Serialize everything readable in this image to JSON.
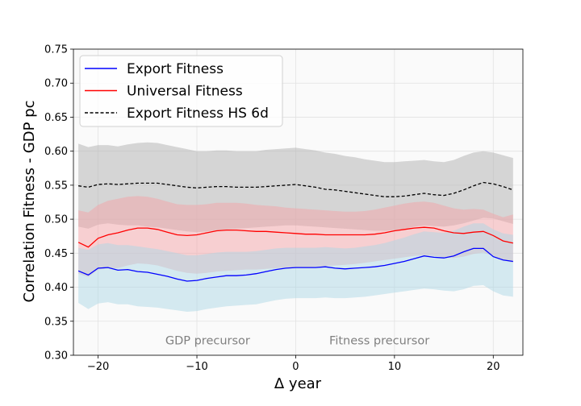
{
  "chart_data": {
    "type": "line",
    "xlabel": "Δ year",
    "ylabel": "Correlation Fitness - GDP pc",
    "xlim": [
      -22.5,
      23
    ],
    "ylim": [
      0.3,
      0.75
    ],
    "xticks": [
      -20,
      -10,
      0,
      10,
      20
    ],
    "xtick_labels": [
      "−20",
      "−10",
      "0",
      "10",
      "20"
    ],
    "yticks": [
      0.3,
      0.35,
      0.4,
      0.45,
      0.5,
      0.55,
      0.6,
      0.65,
      0.7,
      0.75
    ],
    "ytick_labels": [
      "0.30",
      "0.35",
      "0.40",
      "0.45",
      "0.50",
      "0.55",
      "0.60",
      "0.65",
      "0.70",
      "0.75"
    ],
    "grid": true,
    "legend_position": "top-left",
    "annotations": [
      {
        "text": "GDP precursor",
        "x": -13.2,
        "y": 0.316
      },
      {
        "text": "Fitness precursor",
        "x": 3.4,
        "y": 0.316
      }
    ],
    "x": [
      -22,
      -21,
      -20,
      -19,
      -18,
      -17,
      -16,
      -15,
      -14,
      -13,
      -12,
      -11,
      -10,
      -9,
      -8,
      -7,
      -6,
      -5,
      -4,
      -3,
      -2,
      -1,
      0,
      1,
      2,
      3,
      4,
      5,
      6,
      7,
      8,
      9,
      10,
      11,
      12,
      13,
      14,
      15,
      16,
      17,
      18,
      19,
      20,
      21,
      22
    ],
    "series": [
      {
        "name": "Export Fitness HS 6d",
        "color": "#000000",
        "style": "dashed",
        "band_color": "#b0b0b0",
        "values": [
          0.549,
          0.547,
          0.551,
          0.552,
          0.551,
          0.552,
          0.553,
          0.553,
          0.553,
          0.551,
          0.549,
          0.547,
          0.546,
          0.547,
          0.548,
          0.548,
          0.547,
          0.547,
          0.547,
          0.548,
          0.549,
          0.55,
          0.551,
          0.549,
          0.547,
          0.544,
          0.543,
          0.541,
          0.539,
          0.537,
          0.535,
          0.533,
          0.533,
          0.534,
          0.536,
          0.538,
          0.536,
          0.535,
          0.538,
          0.543,
          0.549,
          0.554,
          0.552,
          0.548,
          0.543
        ],
        "lower": [
          0.489,
          0.486,
          0.492,
          0.494,
          0.492,
          0.491,
          0.491,
          0.489,
          0.488,
          0.486,
          0.484,
          0.482,
          0.481,
          0.482,
          0.484,
          0.485,
          0.486,
          0.487,
          0.488,
          0.489,
          0.49,
          0.491,
          0.491,
          0.49,
          0.489,
          0.488,
          0.487,
          0.486,
          0.485,
          0.484,
          0.483,
          0.483,
          0.484,
          0.486,
          0.489,
          0.491,
          0.49,
          0.489,
          0.491,
          0.494,
          0.498,
          0.502,
          0.501,
          0.497,
          0.493
        ],
        "upper": [
          0.611,
          0.606,
          0.609,
          0.609,
          0.607,
          0.61,
          0.612,
          0.613,
          0.612,
          0.609,
          0.606,
          0.603,
          0.6,
          0.6,
          0.601,
          0.601,
          0.6,
          0.6,
          0.6,
          0.602,
          0.603,
          0.604,
          0.605,
          0.603,
          0.601,
          0.598,
          0.596,
          0.593,
          0.591,
          0.588,
          0.586,
          0.584,
          0.584,
          0.585,
          0.586,
          0.587,
          0.585,
          0.584,
          0.587,
          0.593,
          0.598,
          0.6,
          0.598,
          0.594,
          0.59
        ]
      },
      {
        "name": "Universal Fitness",
        "color": "#ff0000",
        "style": "solid",
        "band_color": "#f4a4a8",
        "values": [
          0.466,
          0.459,
          0.472,
          0.477,
          0.48,
          0.484,
          0.487,
          0.487,
          0.485,
          0.481,
          0.477,
          0.476,
          0.477,
          0.48,
          0.483,
          0.484,
          0.484,
          0.483,
          0.482,
          0.482,
          0.481,
          0.48,
          0.479,
          0.478,
          0.478,
          0.477,
          0.477,
          0.477,
          0.477,
          0.477,
          0.478,
          0.48,
          0.483,
          0.485,
          0.487,
          0.488,
          0.487,
          0.483,
          0.48,
          0.479,
          0.481,
          0.482,
          0.476,
          0.468,
          0.465
        ],
        "lower": [
          0.42,
          0.415,
          0.426,
          0.428,
          0.428,
          0.432,
          0.435,
          0.434,
          0.432,
          0.428,
          0.424,
          0.421,
          0.42,
          0.421,
          0.423,
          0.424,
          0.425,
          0.426,
          0.426,
          0.427,
          0.428,
          0.429,
          0.429,
          0.429,
          0.43,
          0.431,
          0.432,
          0.433,
          0.434,
          0.436,
          0.438,
          0.44,
          0.442,
          0.444,
          0.446,
          0.447,
          0.446,
          0.444,
          0.443,
          0.445,
          0.449,
          0.451,
          0.446,
          0.44,
          0.436
        ],
        "upper": [
          0.513,
          0.51,
          0.521,
          0.527,
          0.53,
          0.533,
          0.534,
          0.533,
          0.53,
          0.526,
          0.522,
          0.521,
          0.521,
          0.522,
          0.524,
          0.524,
          0.524,
          0.523,
          0.521,
          0.52,
          0.519,
          0.517,
          0.516,
          0.515,
          0.514,
          0.513,
          0.512,
          0.511,
          0.511,
          0.512,
          0.514,
          0.517,
          0.52,
          0.523,
          0.525,
          0.526,
          0.524,
          0.52,
          0.516,
          0.514,
          0.515,
          0.514,
          0.508,
          0.503,
          0.507
        ]
      },
      {
        "name": "Export Fitness",
        "color": "#0000ff",
        "style": "solid",
        "band_color": "#add8e6",
        "values": [
          0.424,
          0.418,
          0.428,
          0.429,
          0.425,
          0.426,
          0.423,
          0.422,
          0.419,
          0.416,
          0.412,
          0.409,
          0.41,
          0.413,
          0.415,
          0.417,
          0.417,
          0.418,
          0.42,
          0.423,
          0.426,
          0.428,
          0.429,
          0.429,
          0.429,
          0.43,
          0.428,
          0.427,
          0.428,
          0.429,
          0.43,
          0.432,
          0.435,
          0.438,
          0.442,
          0.446,
          0.444,
          0.443,
          0.446,
          0.452,
          0.457,
          0.457,
          0.445,
          0.44,
          0.438
        ],
        "lower": [
          0.377,
          0.368,
          0.376,
          0.378,
          0.375,
          0.375,
          0.372,
          0.371,
          0.37,
          0.368,
          0.366,
          0.364,
          0.365,
          0.368,
          0.37,
          0.372,
          0.373,
          0.374,
          0.375,
          0.378,
          0.381,
          0.383,
          0.384,
          0.384,
          0.384,
          0.385,
          0.384,
          0.384,
          0.385,
          0.386,
          0.388,
          0.39,
          0.392,
          0.394,
          0.396,
          0.398,
          0.397,
          0.395,
          0.394,
          0.397,
          0.402,
          0.403,
          0.394,
          0.388,
          0.386
        ],
        "upper": [
          0.458,
          0.455,
          0.463,
          0.465,
          0.462,
          0.462,
          0.46,
          0.458,
          0.456,
          0.453,
          0.45,
          0.447,
          0.447,
          0.449,
          0.451,
          0.452,
          0.452,
          0.452,
          0.453,
          0.455,
          0.457,
          0.458,
          0.458,
          0.458,
          0.458,
          0.459,
          0.458,
          0.457,
          0.458,
          0.46,
          0.462,
          0.465,
          0.469,
          0.473,
          0.478,
          0.482,
          0.481,
          0.48,
          0.483,
          0.489,
          0.494,
          0.494,
          0.485,
          0.479,
          0.477
        ]
      }
    ],
    "legend": [
      {
        "label": "Export Fitness",
        "color": "#0000ff",
        "style": "solid"
      },
      {
        "label": "Universal Fitness",
        "color": "#ff0000",
        "style": "solid"
      },
      {
        "label": "Export Fitness HS 6d",
        "color": "#000000",
        "style": "dashed"
      }
    ]
  }
}
